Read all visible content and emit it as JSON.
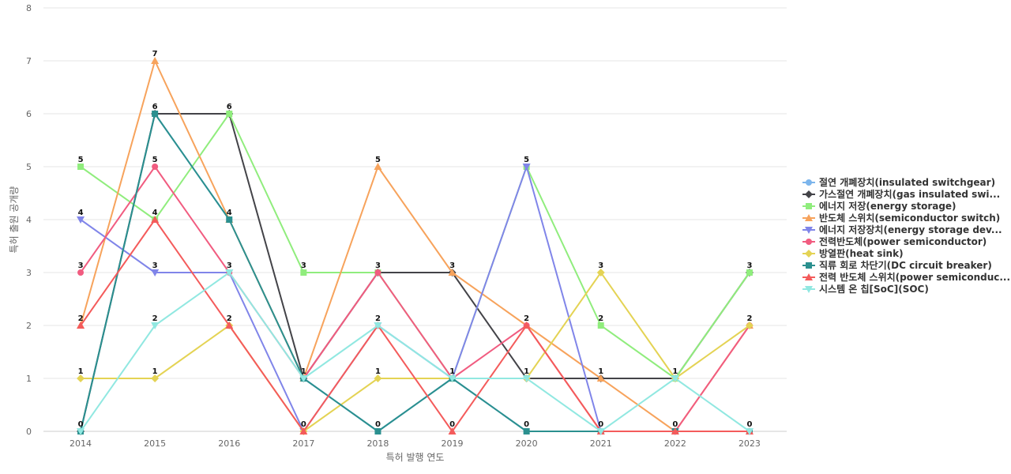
{
  "chart_data": {
    "type": "line",
    "xlabel": "특허 발행 연도",
    "ylabel": "특허 출원 공개량",
    "ylim": [
      0,
      8
    ],
    "grid": true,
    "legend_position": "right",
    "x": [
      "2014",
      "2015",
      "2016",
      "2017",
      "2018",
      "2019",
      "2020",
      "2021",
      "2022",
      "2023"
    ],
    "yticks": [
      "0",
      "1",
      "2",
      "3",
      "4",
      "5",
      "6",
      "7",
      "8"
    ],
    "series": [
      {
        "name": "절연 개폐장치(insulated switchgear)",
        "color": "#7cb5ec",
        "marker": "circle",
        "values": [
          0,
          6,
          4,
          1,
          0,
          1,
          0,
          0,
          0,
          0
        ]
      },
      {
        "name": "가스절연 개폐장치(gas insulated swi...",
        "color": "#434348",
        "marker": "diamond",
        "values": [
          0,
          6,
          6,
          1,
          3,
          3,
          1,
          1,
          1,
          3
        ]
      },
      {
        "name": "에너지 저장(energy storage)",
        "color": "#90ed7d",
        "marker": "square",
        "values": [
          5,
          4,
          6,
          3,
          3,
          1,
          5,
          2,
          1,
          3
        ]
      },
      {
        "name": "반도체 스위치(semiconductor switch)",
        "color": "#f7a35c",
        "marker": "triangle",
        "values": [
          2,
          7,
          4,
          1,
          5,
          3,
          2,
          1,
          0,
          2
        ]
      },
      {
        "name": "에너지 저장장치(energy storage dev...",
        "color": "#8085e9",
        "marker": "triangle-down",
        "values": [
          4,
          3,
          3,
          0,
          2,
          1,
          5,
          0,
          0,
          0
        ]
      },
      {
        "name": "전력반도체(power semiconductor)",
        "color": "#f15c80",
        "marker": "circle",
        "values": [
          3,
          5,
          3,
          1,
          3,
          1,
          2,
          0,
          0,
          2
        ]
      },
      {
        "name": "방열판(heat sink)",
        "color": "#e4d354",
        "marker": "diamond",
        "values": [
          1,
          1,
          2,
          0,
          1,
          1,
          1,
          3,
          1,
          2
        ]
      },
      {
        "name": "직류 회로 차단기(DC circuit breaker)",
        "color": "#2b908f",
        "marker": "square",
        "values": [
          0,
          6,
          4,
          1,
          0,
          1,
          0,
          0,
          0,
          0
        ]
      },
      {
        "name": "전력 반도체 스위치(power semiconduc...",
        "color": "#f45b5b",
        "marker": "triangle",
        "values": [
          2,
          4,
          2,
          0,
          2,
          0,
          2,
          0,
          0,
          0
        ]
      },
      {
        "name": "시스템 온 칩[SoC](SOC)",
        "color": "#91e8e1",
        "marker": "triangle-down",
        "values": [
          0,
          2,
          3,
          1,
          2,
          1,
          1,
          0,
          1,
          0
        ]
      }
    ],
    "data_labels": [
      {
        "x": "2014",
        "y": 5,
        "text": "5"
      },
      {
        "x": "2014",
        "y": 4,
        "text": "4"
      },
      {
        "x": "2014",
        "y": 3,
        "text": "3"
      },
      {
        "x": "2014",
        "y": 2,
        "text": "2"
      },
      {
        "x": "2014",
        "y": 1,
        "text": "1"
      },
      {
        "x": "2014",
        "y": 0,
        "text": "0"
      },
      {
        "x": "2015",
        "y": 7,
        "text": "7"
      },
      {
        "x": "2015",
        "y": 6,
        "text": "6"
      },
      {
        "x": "2015",
        "y": 5,
        "text": "5"
      },
      {
        "x": "2015",
        "y": 4,
        "text": "4"
      },
      {
        "x": "2015",
        "y": 3,
        "text": "3"
      },
      {
        "x": "2015",
        "y": 2,
        "text": "2"
      },
      {
        "x": "2015",
        "y": 1,
        "text": "1"
      },
      {
        "x": "2016",
        "y": 6,
        "text": "6"
      },
      {
        "x": "2016",
        "y": 4,
        "text": "4"
      },
      {
        "x": "2016",
        "y": 3,
        "text": "3"
      },
      {
        "x": "2016",
        "y": 2,
        "text": "2"
      },
      {
        "x": "2017",
        "y": 3,
        "text": "3"
      },
      {
        "x": "2017",
        "y": 1,
        "text": "1"
      },
      {
        "x": "2017",
        "y": 0,
        "text": "0"
      },
      {
        "x": "2018",
        "y": 5,
        "text": "5"
      },
      {
        "x": "2018",
        "y": 3,
        "text": "3"
      },
      {
        "x": "2018",
        "y": 2,
        "text": "2"
      },
      {
        "x": "2018",
        "y": 1,
        "text": "1"
      },
      {
        "x": "2018",
        "y": 0,
        "text": "0"
      },
      {
        "x": "2019",
        "y": 3,
        "text": "3"
      },
      {
        "x": "2019",
        "y": 1,
        "text": "1"
      },
      {
        "x": "2019",
        "y": 0,
        "text": "0"
      },
      {
        "x": "2020",
        "y": 5,
        "text": "5"
      },
      {
        "x": "2020",
        "y": 2,
        "text": "2"
      },
      {
        "x": "2020",
        "y": 1,
        "text": "1"
      },
      {
        "x": "2020",
        "y": 0,
        "text": "0"
      },
      {
        "x": "2021",
        "y": 3,
        "text": "3"
      },
      {
        "x": "2021",
        "y": 2,
        "text": "2"
      },
      {
        "x": "2021",
        "y": 1,
        "text": "1"
      },
      {
        "x": "2021",
        "y": 0,
        "text": "0"
      },
      {
        "x": "2022",
        "y": 1,
        "text": "1"
      },
      {
        "x": "2022",
        "y": 0,
        "text": "0"
      },
      {
        "x": "2023",
        "y": 3,
        "text": "3"
      },
      {
        "x": "2023",
        "y": 2,
        "text": "2"
      },
      {
        "x": "2023",
        "y": 0,
        "text": "0"
      }
    ]
  }
}
